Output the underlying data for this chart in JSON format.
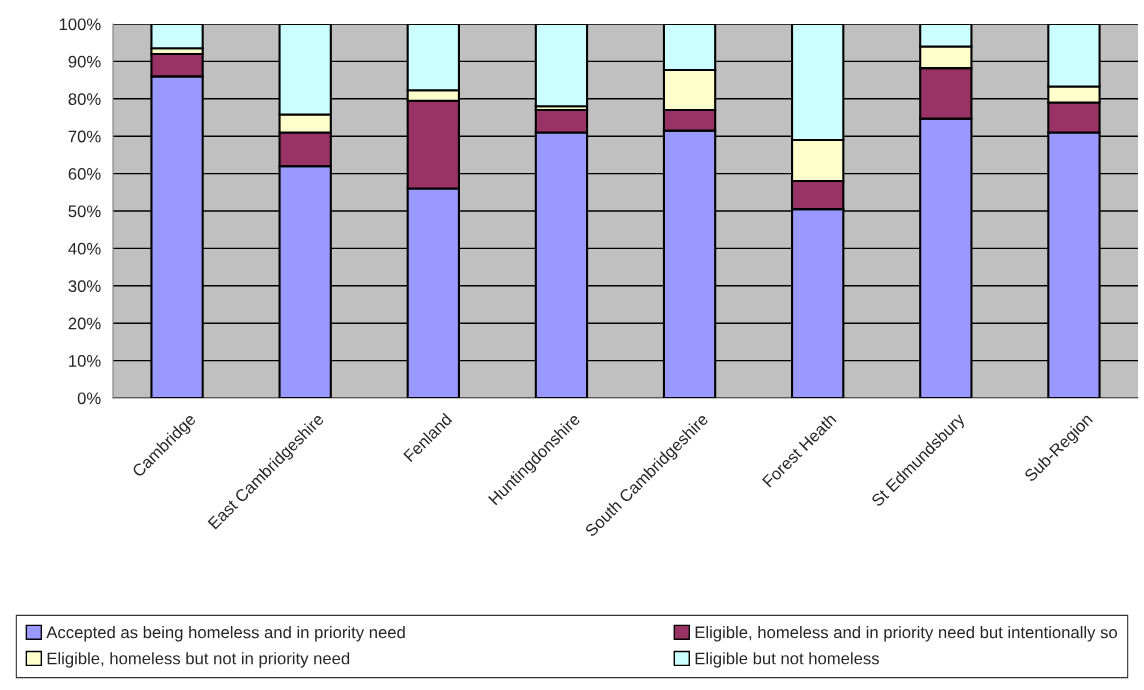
{
  "chart_data": {
    "type": "bar",
    "stacked": true,
    "categories": [
      "Cambridge",
      "East Cambridgeshire",
      "Fenland",
      "Huntingdonshire",
      "South Cambridgeshire",
      "Forest Heath",
      "St Edmundsbury",
      "Sub-Region"
    ],
    "series": [
      {
        "name": "Accepted as being homeless and in priority need",
        "color": "#9999ff",
        "values": [
          86,
          62,
          56,
          71,
          71.5,
          50.5,
          74.7,
          71
        ]
      },
      {
        "name": "Eligible, homeless and in priority need but intentionally so",
        "color": "#993366",
        "values": [
          6,
          9,
          23.5,
          6,
          5.5,
          7.5,
          13.5,
          8
        ]
      },
      {
        "name": "Eligible, homeless but not in priority need",
        "color": "#ffffcc",
        "values": [
          1.5,
          4.8,
          2.8,
          1,
          10.7,
          11,
          5.8,
          4.3
        ]
      },
      {
        "name": "Eligible but not homeless",
        "color": "#ccffff",
        "values": [
          6.5,
          24.2,
          17.7,
          22,
          12.3,
          31,
          6,
          16.7
        ]
      }
    ],
    "ylim": [
      0,
      100
    ],
    "yticks": [
      {
        "value": 0,
        "label": "0%"
      },
      {
        "value": 10,
        "label": "10%"
      },
      {
        "value": 20,
        "label": "20%"
      },
      {
        "value": 30,
        "label": "30%"
      },
      {
        "value": 40,
        "label": "40%"
      },
      {
        "value": 50,
        "label": "50%"
      },
      {
        "value": 60,
        "label": "60%"
      },
      {
        "value": 70,
        "label": "70%"
      },
      {
        "value": 80,
        "label": "80%"
      },
      {
        "value": 90,
        "label": "90%"
      },
      {
        "value": 100,
        "label": "100%"
      }
    ],
    "grid": "y",
    "legend": "bottom"
  }
}
